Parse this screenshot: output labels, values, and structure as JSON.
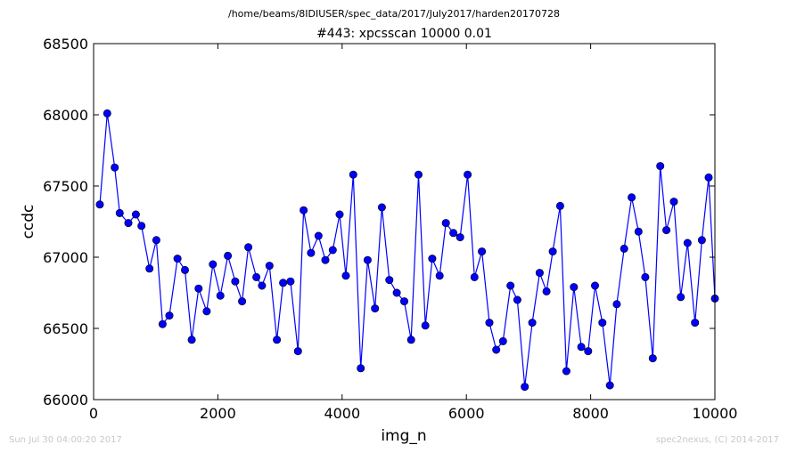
{
  "header": {
    "file_path": "/home/beams/8IDIUSER/spec_data/2017/July2017/harden20170728"
  },
  "footer": {
    "timestamp": "Sun Jul 30 04:00:20 2017",
    "credit": "spec2nexus, (C) 2014-2017"
  },
  "colors": {
    "series": "#0000ff",
    "marker_fill": "#0000ff",
    "axes": "#000000",
    "footer_text": "#c8c8c8"
  },
  "chart_data": {
    "type": "line",
    "title": "#443: xpcsscan 10000 0.01",
    "xlabel": "img_n",
    "ylabel": "ccdc",
    "xlim": [
      0,
      10000
    ],
    "ylim": [
      66000,
      68500
    ],
    "xticks": [
      0,
      2000,
      4000,
      6000,
      8000,
      10000
    ],
    "yticks": [
      66000,
      66500,
      67000,
      67500,
      68000,
      68500
    ],
    "grid": false,
    "legend": "none",
    "marker": "circle",
    "series": [
      {
        "x": [
          100,
          220,
          340,
          420,
          560,
          680,
          770,
          900,
          1010,
          1110,
          1220,
          1350,
          1470,
          1580,
          1690,
          1820,
          1920,
          2040,
          2160,
          2280,
          2390,
          2490,
          2620,
          2710,
          2830,
          2950,
          3050,
          3170,
          3290,
          3380,
          3500,
          3620,
          3730,
          3850,
          3960,
          4060,
          4180,
          4300,
          4410,
          4530,
          4640,
          4760,
          4880,
          5000,
          5110,
          5230,
          5340,
          5450,
          5570,
          5670,
          5790,
          5900,
          6020,
          6130,
          6250,
          6370,
          6480,
          6590,
          6710,
          6820,
          6940,
          7060,
          7180,
          7290,
          7390,
          7510,
          7610,
          7730,
          7850,
          7960,
          8070,
          8190,
          8310,
          8420,
          8540,
          8660,
          8770,
          8880,
          9000,
          9120,
          9220,
          9340,
          9450,
          9560,
          9680,
          9790,
          9900,
          10000
        ],
        "values": [
          67370,
          68010,
          67630,
          67310,
          67240,
          67300,
          67220,
          66920,
          67120,
          66530,
          66590,
          66990,
          66910,
          66420,
          66780,
          66620,
          66950,
          66730,
          67010,
          66830,
          66690,
          67070,
          66860,
          66800,
          66940,
          66420,
          66820,
          66830,
          66340,
          67330,
          67030,
          67150,
          66980,
          67050,
          67300,
          66870,
          67580,
          66220,
          66980,
          66640,
          67350,
          66840,
          66750,
          66690,
          66420,
          67580,
          66520,
          66990,
          66870,
          67240,
          67170,
          67140,
          67580,
          66860,
          67040,
          66540,
          66350,
          66410,
          66800,
          66700,
          66090,
          66540,
          66890,
          66760,
          67040,
          67360,
          66200,
          66790,
          66370,
          66340,
          66800,
          66540,
          66100,
          66670,
          67060,
          67420,
          67180,
          66860,
          66290,
          67640,
          67190,
          67390,
          66720,
          67100,
          66540,
          67120,
          67560,
          66710
        ]
      }
    ]
  }
}
